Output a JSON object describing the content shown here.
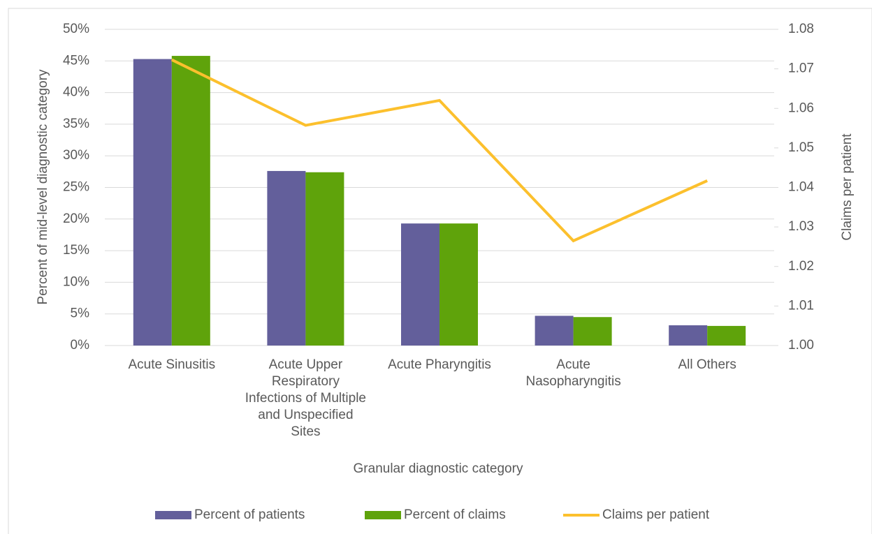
{
  "chart_data": {
    "type": "bar",
    "x_label": "Granular diagnostic category",
    "y_label": "Percent of mid-level diagnostic category",
    "y2_label": "Claims per patient",
    "categories": [
      "Acute Sinusitis",
      "Acute Upper Respiratory Infections of Multiple and Unspecified Sites",
      "Acute Pharyngitis",
      "Acute Nasopharyngitis",
      "All Others"
    ],
    "series": [
      {
        "name": "Percent of patients",
        "type": "bar",
        "color": "#635f9b",
        "values": [
          45.3,
          27.6,
          19.3,
          4.7,
          3.2
        ]
      },
      {
        "name": "Percent of claims",
        "type": "bar",
        "color": "#5fa30b",
        "values": [
          45.8,
          27.4,
          19.3,
          4.5,
          3.1
        ]
      },
      {
        "name": "Claims per patient",
        "type": "line",
        "axis": "y2",
        "color": "#fcc02d",
        "values": [
          1.0723,
          1.0557,
          1.062,
          1.0265,
          1.0417
        ]
      }
    ],
    "ylim": [
      0,
      50
    ],
    "yticks": [
      {
        "value": 0,
        "label": "0%"
      },
      {
        "value": 5,
        "label": "5%"
      },
      {
        "value": 10,
        "label": "10%"
      },
      {
        "value": 15,
        "label": "15%"
      },
      {
        "value": 20,
        "label": "20%"
      },
      {
        "value": 25,
        "label": "25%"
      },
      {
        "value": 30,
        "label": "30%"
      },
      {
        "value": 35,
        "label": "35%"
      },
      {
        "value": 40,
        "label": "40%"
      },
      {
        "value": 45,
        "label": "45%"
      },
      {
        "value": 50,
        "label": "50%"
      }
    ],
    "y2lim": [
      1,
      1.08
    ],
    "y2ticks": [
      {
        "value": 1,
        "label": "1.00"
      },
      1.01,
      1.02,
      1.03,
      1.04,
      1.05,
      1.06,
      1.07,
      1.08
    ],
    "grid": true,
    "legend": "bottom"
  }
}
